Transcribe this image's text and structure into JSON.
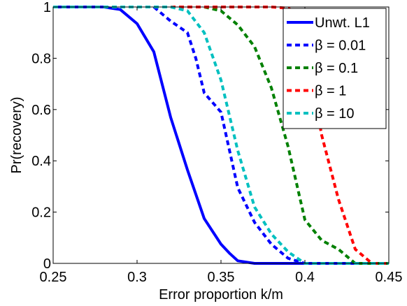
{
  "chart_data": {
    "type": "line",
    "xlabel": "Error proportion k/m",
    "ylabel": "Pr(recovery)",
    "xlim": [
      0.25,
      0.45
    ],
    "ylim": [
      0,
      1
    ],
    "xticks": [
      0.25,
      0.3,
      0.35,
      0.4,
      0.45
    ],
    "xtick_labels": [
      "0.25",
      "0.3",
      "0.35",
      "0.4",
      "0.45"
    ],
    "yticks": [
      0,
      0.2,
      0.4,
      0.6,
      0.8,
      1
    ],
    "ytick_labels": [
      "0",
      "0.2",
      "0.4",
      "0.6",
      "0.8",
      "1"
    ],
    "grid": false,
    "legend_position": "top-right",
    "series": [
      {
        "name": "Unwt. L1",
        "color": "#0000ff",
        "style": "solid",
        "x": [
          0.25,
          0.28,
          0.29,
          0.3,
          0.31,
          0.32,
          0.33,
          0.34,
          0.35,
          0.355,
          0.36,
          0.37,
          0.45
        ],
        "y": [
          1,
          1,
          0.99,
          0.935,
          0.825,
          0.57,
          0.365,
          0.175,
          0.075,
          0.04,
          0.01,
          0,
          0
        ]
      },
      {
        "name": "β = 0.01",
        "color": "#0000ff",
        "style": "dashed",
        "x": [
          0.25,
          0.3,
          0.31,
          0.32,
          0.33,
          0.335,
          0.34,
          0.35,
          0.36,
          0.37,
          0.38,
          0.39,
          0.4,
          0.45
        ],
        "y": [
          1,
          1,
          1,
          0.945,
          0.9,
          0.8,
          0.665,
          0.59,
          0.295,
          0.16,
          0.075,
          0.02,
          0,
          0
        ]
      },
      {
        "name": "β = 0.1",
        "color": "#008000",
        "style": "dashed",
        "x": [
          0.25,
          0.33,
          0.34,
          0.35,
          0.36,
          0.37,
          0.38,
          0.39,
          0.4,
          0.41,
          0.42,
          0.43,
          0.45
        ],
        "y": [
          1,
          1,
          1,
          0.985,
          0.93,
          0.845,
          0.685,
          0.455,
          0.17,
          0.09,
          0.055,
          0,
          0
        ]
      },
      {
        "name": "β = 1",
        "color": "#ff0000",
        "style": "dashed",
        "x": [
          0.25,
          0.38,
          0.39,
          0.395,
          0.4,
          0.41,
          0.42,
          0.43,
          0.44,
          0.45
        ],
        "y": [
          1,
          1,
          0.995,
          0.98,
          0.86,
          0.5,
          0.25,
          0.055,
          0,
          0
        ]
      },
      {
        "name": "β = 10",
        "color": "#00c0c0",
        "style": "dashed",
        "x": [
          0.25,
          0.3,
          0.32,
          0.33,
          0.34,
          0.35,
          0.36,
          0.37,
          0.38,
          0.39,
          0.4,
          0.41,
          0.45
        ],
        "y": [
          1,
          1,
          1,
          0.985,
          0.9,
          0.715,
          0.44,
          0.22,
          0.115,
          0.045,
          0,
          0,
          0
        ]
      }
    ]
  }
}
